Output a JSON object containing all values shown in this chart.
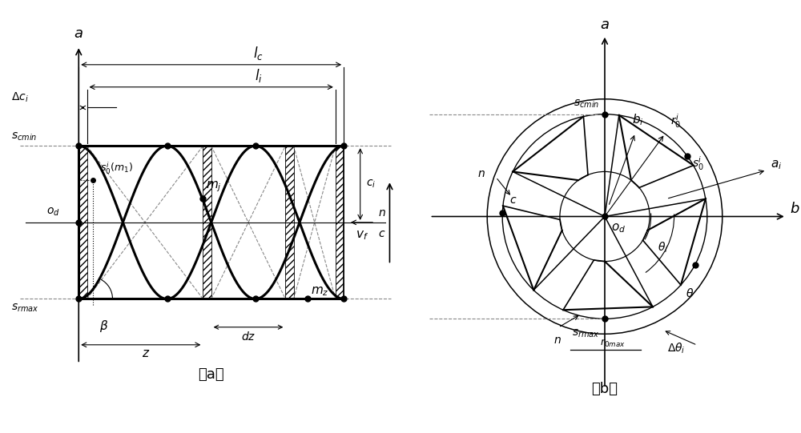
{
  "fig_width": 10.0,
  "fig_height": 5.41,
  "bg_color": "#ffffff",
  "black": "#000000",
  "gray": "#888888"
}
